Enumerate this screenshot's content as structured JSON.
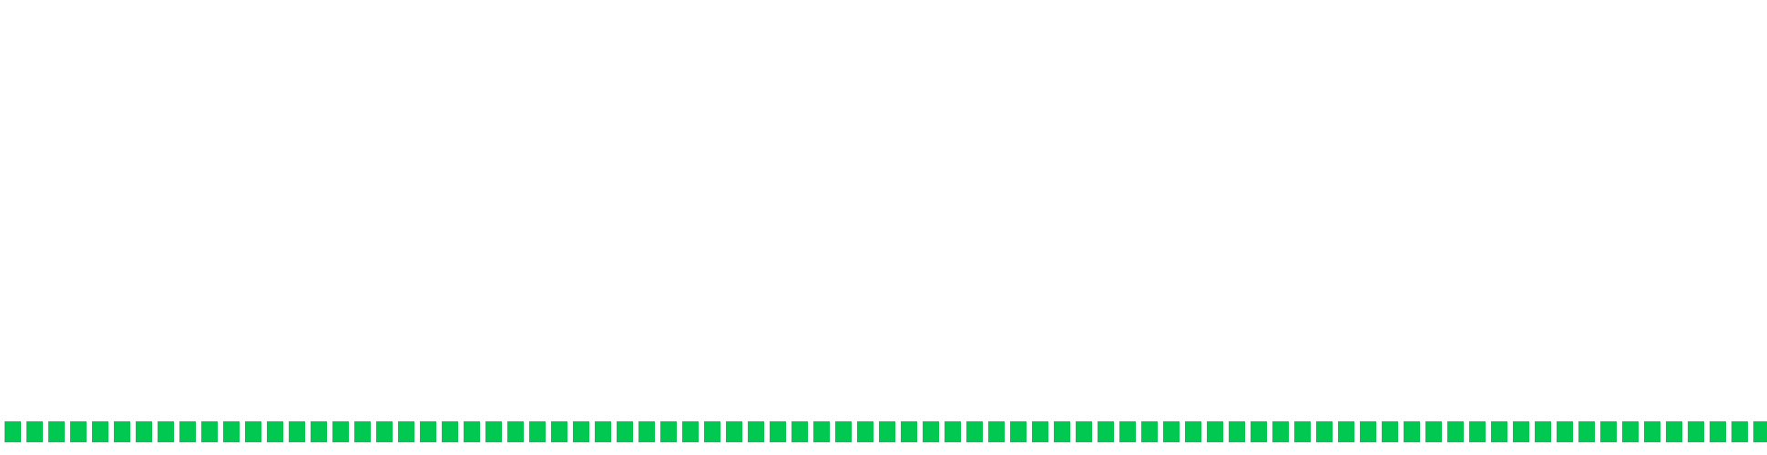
{
  "indicator": {
    "color": "#00c851",
    "segments_shown": 81
  }
}
